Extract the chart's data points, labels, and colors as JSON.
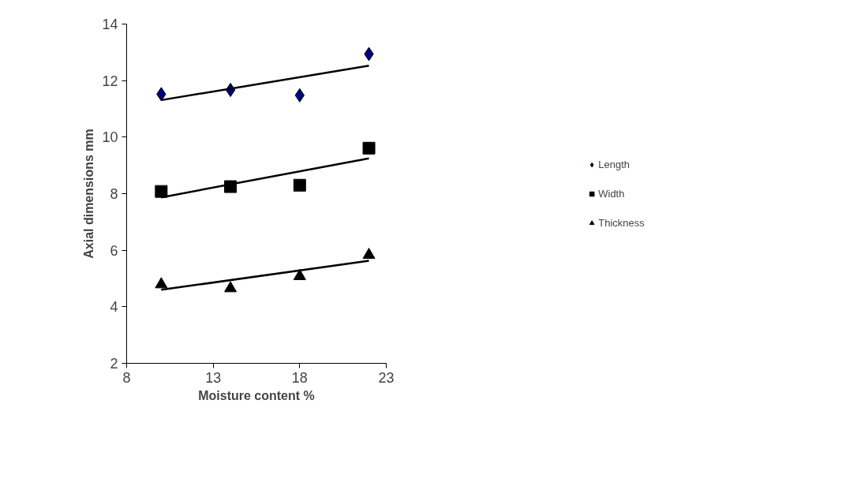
{
  "chart_data": {
    "type": "scatter",
    "xlabel": "Moisture content %",
    "ylabel": "Axial dimensions mm",
    "xlim": [
      8,
      23
    ],
    "xticks": [
      8,
      13,
      18,
      23
    ],
    "ylim": [
      2,
      14
    ],
    "yticks": [
      2,
      4,
      6,
      8,
      10,
      12,
      14
    ],
    "grid": false,
    "legend": "right",
    "series": [
      {
        "name": "Length",
        "color": "#000080",
        "marker": "diamond",
        "x": [
          10,
          14,
          18,
          22
        ],
        "values": [
          11.52,
          11.67,
          11.48,
          12.94
        ]
      },
      {
        "name": "Width",
        "color": "#000000",
        "marker": "square",
        "x": [
          10,
          14,
          18,
          22
        ],
        "values": [
          8.08,
          8.25,
          8.3,
          9.61
        ]
      },
      {
        "name": "Thickness",
        "color": "#000000",
        "marker": "triangle",
        "x": [
          10,
          14,
          18,
          22
        ],
        "values": [
          4.79,
          4.65,
          5.08,
          5.83
        ]
      },
      {
        "type": "line",
        "color": "#000000",
        "x": [
          10,
          22
        ],
        "values": [
          11.31,
          12.53
        ]
      },
      {
        "type": "line",
        "color": "#000000",
        "x": [
          10,
          22
        ],
        "values": [
          7.87,
          9.25
        ]
      },
      {
        "type": "line",
        "color": "#000000",
        "x": [
          10,
          22
        ],
        "values": [
          4.6,
          5.63
        ]
      }
    ]
  }
}
